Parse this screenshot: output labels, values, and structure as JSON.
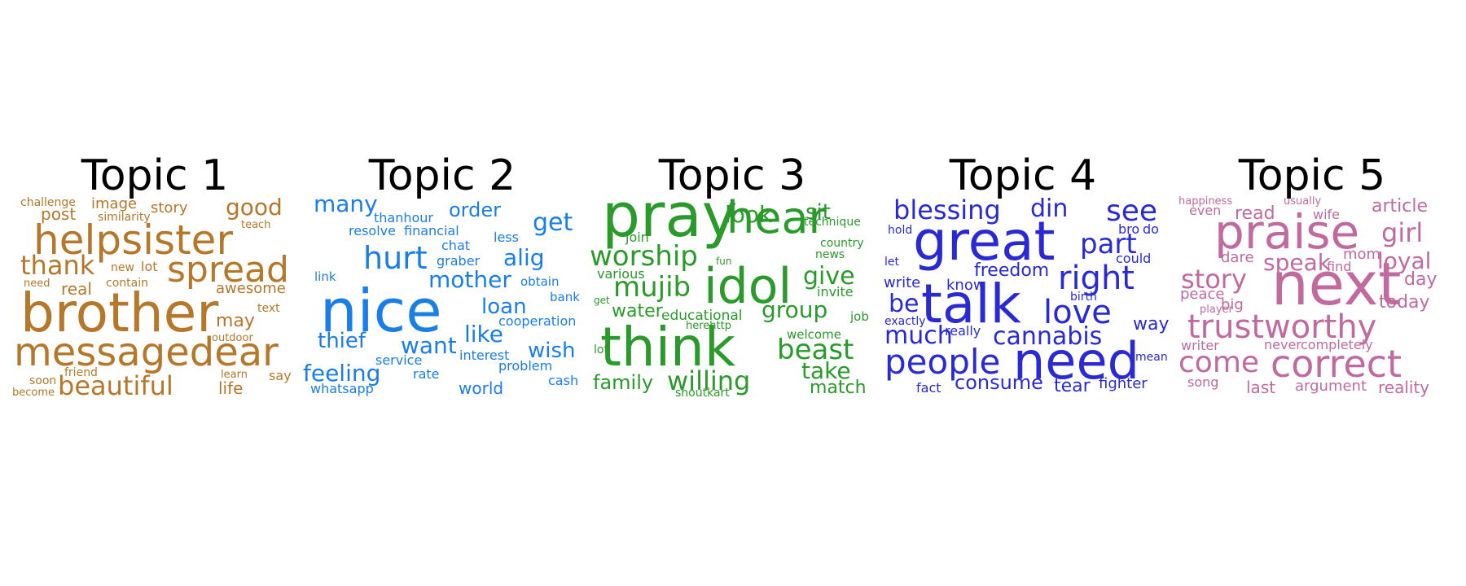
{
  "topics": [
    {
      "title": "Topic 1",
      "color": "#b5782a",
      "words": [
        "brother",
        "helpsister",
        "messagedear",
        "spread",
        "thank",
        "good",
        "beautiful",
        "post",
        "image",
        "story",
        "real",
        "awesome",
        "may",
        "life",
        "lot",
        "new",
        "similarity",
        "challenge",
        "teach",
        "contain",
        "need",
        "text",
        "outdoor",
        "friend",
        "learn",
        "say",
        "soon",
        "become"
      ]
    },
    {
      "title": "Topic 2",
      "color": "#1a7ee6",
      "words": [
        "nice",
        "hurt",
        "many",
        "order",
        "get",
        "thanhour",
        "resolve",
        "financial",
        "less",
        "chat",
        "alig",
        "graber",
        "mother",
        "link",
        "obtain",
        "loan",
        "bank",
        "cooperation",
        "like",
        "thief",
        "want",
        "wish",
        "interest",
        "service",
        "problem",
        "feeling",
        "rate",
        "cash",
        "whatsapp",
        "world"
      ]
    },
    {
      "title": "Topic 3",
      "color": "#2a9a2a",
      "words": [
        "pray",
        "hear",
        "look",
        "sit",
        "technique",
        "join",
        "worship",
        "country",
        "news",
        "fun",
        "various",
        "mujib",
        "idol",
        "give",
        "invite",
        "get",
        "water",
        "educational",
        "group",
        "job",
        "herehttp",
        "think",
        "beast",
        "welcome",
        "lot",
        "take",
        "family",
        "willing",
        "match",
        "shoutkart"
      ]
    },
    {
      "title": "Topic 4",
      "color": "#2a2ad4",
      "words": [
        "blessing",
        "din",
        "see",
        "great",
        "hold",
        "bro",
        "do",
        "part",
        "could",
        "let",
        "right",
        "write",
        "freedom",
        "know",
        "talk",
        "be",
        "love",
        "birth",
        "exactly",
        "way",
        "much",
        "really",
        "cannabis",
        "people",
        "need",
        "mean",
        "fact",
        "consume",
        "tear",
        "fighter"
      ]
    },
    {
      "title": "Topic 5",
      "color": "#c06aa0",
      "words": [
        "happiness",
        "usually",
        "article",
        "even",
        "read",
        "wife",
        "praise",
        "girl",
        "dare",
        "mom",
        "story",
        "speak",
        "find",
        "loyal",
        "day",
        "peace",
        "next",
        "player",
        "big",
        "today",
        "trustworthy",
        "writer",
        "never",
        "completely",
        "come",
        "correct",
        "song",
        "last",
        "argument",
        "reality"
      ]
    }
  ]
}
